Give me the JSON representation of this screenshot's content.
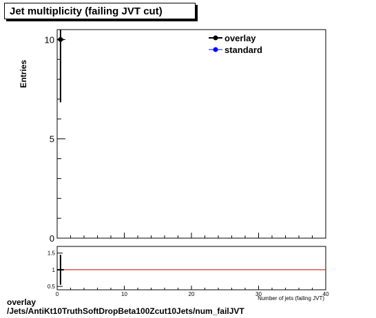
{
  "header": {
    "title": "Jet multiplicity (failing JVT cut)"
  },
  "footer": {
    "line1": "overlay",
    "line2": "/Jets/AntiKt10TruthSoftDropBeta100Zcut10Jets/num_failJVT"
  },
  "chart_data": [
    {
      "type": "scatter",
      "title": "Jet multiplicity (failing JVT cut)",
      "ylabel": "Entries",
      "xlim": [
        0,
        40
      ],
      "ylim": [
        0,
        10.5
      ],
      "yticks": [
        0,
        5,
        10
      ],
      "legend": {
        "placement": "top-right",
        "entries": [
          "overlay",
          "standard"
        ]
      },
      "colors": {
        "overlay": "#000000",
        "standard": "#0000ff"
      },
      "series": [
        {
          "name": "overlay",
          "points": [
            {
              "x": 0.5,
              "y": 10,
              "yerr": 3.16
            }
          ]
        },
        {
          "name": "standard",
          "points": []
        }
      ]
    },
    {
      "type": "line",
      "xlabel": "Number of jets (failing JVT)",
      "xlim": [
        0,
        40
      ],
      "ylim": [
        0.4,
        1.7
      ],
      "xticks": [
        0,
        10,
        20,
        30,
        40
      ],
      "yticks": [
        0.5,
        1,
        1.5
      ],
      "reference_line": {
        "y": 1,
        "color": "#cc0000"
      },
      "series": [
        {
          "points": [
            {
              "x": 0.5,
              "y": 1,
              "yerr": 0.45
            }
          ]
        }
      ]
    }
  ]
}
